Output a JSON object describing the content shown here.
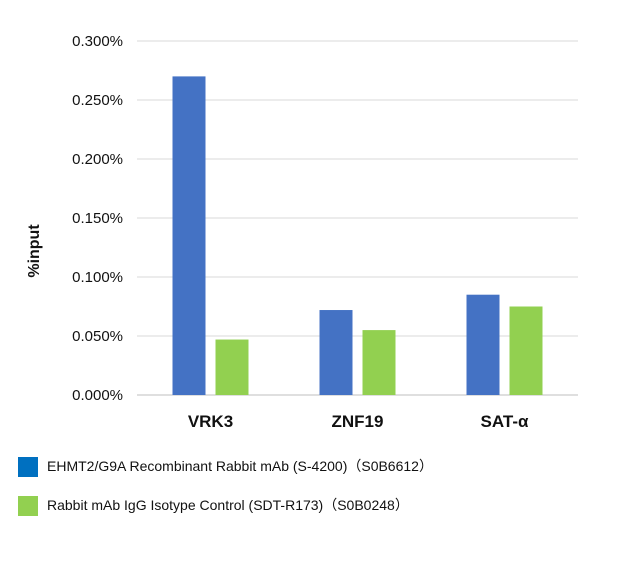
{
  "chart_data": {
    "type": "bar",
    "categories": [
      "VRK3",
      "ZNF19",
      "SAT-α"
    ],
    "series": [
      {
        "name": "EHMT2/G9A Recombinant Rabbit mAb (S-4200)（S0B6612）",
        "color": "#4472c4",
        "values": [
          0.27,
          0.072,
          0.085
        ]
      },
      {
        "name": "Rabbit mAb IgG Isotype Control (SDT-R173)（S0B0248）",
        "color": "#92d050",
        "values": [
          0.047,
          0.055,
          0.075
        ]
      }
    ],
    "yticks": [
      "0.000%",
      "0.050%",
      "0.100%",
      "0.150%",
      "0.200%",
      "0.250%",
      "0.300%"
    ],
    "ylabel": "%input",
    "xlabel": "",
    "ylim": [
      0,
      0.3
    ],
    "grid": true,
    "legend_position": "bottom"
  },
  "legend": {
    "items": [
      {
        "label": "EHMT2/G9A Recombinant Rabbit mAb (S-4200)（S0B6612）",
        "color": "#0070c0"
      },
      {
        "label": "Rabbit mAb IgG Isotype Control (SDT-R173)（S0B0248）",
        "color": "#92d050"
      }
    ]
  }
}
